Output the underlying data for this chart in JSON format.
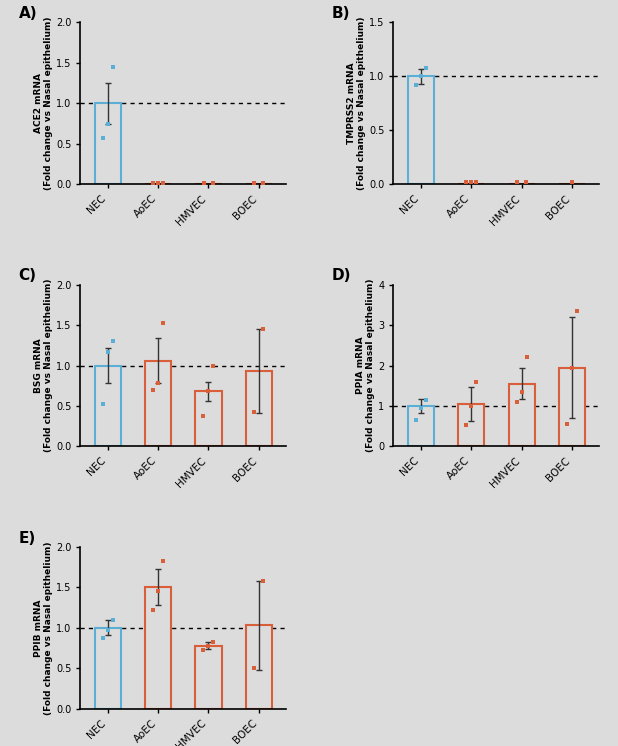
{
  "panels": {
    "A": {
      "ylabel": "ACE2 mRNA\n(Fold change vs Nasal epithelium)",
      "ylim": [
        0,
        2.0
      ],
      "yticks": [
        0.0,
        0.5,
        1.0,
        1.5,
        2.0
      ],
      "ytick_labels": [
        "0.0",
        "0.5",
        "1.0",
        "1.5",
        "2.0"
      ],
      "categories": [
        "NEC",
        "AoEC",
        "HMVEC",
        "BOEC"
      ],
      "bar_values": [
        1.0,
        0.0,
        0.0,
        0.0
      ],
      "bar_errors": [
        0.25,
        0.0,
        0.0,
        0.0
      ],
      "bar_colors": [
        "#5bafd6",
        "#d95f3b",
        "#d95f3b",
        "#d95f3b"
      ],
      "dot_data": {
        "NEC": [
          0.57,
          0.75,
          1.45
        ],
        "AoEC": [
          0.02,
          0.02,
          0.02
        ],
        "HMVEC": [
          0.02,
          0.02
        ],
        "BOEC": [
          0.02,
          0.02
        ]
      },
      "dot_colors": {
        "NEC": "#5bafd6",
        "AoEC": "#d95f3b",
        "HMVEC": "#d95f3b",
        "BOEC": "#d95f3b"
      }
    },
    "B": {
      "ylabel": "TMPRSS2 mRNA\n(Fold change vs Nasal epithelium)",
      "ylim": [
        0,
        1.5
      ],
      "yticks": [
        0.0,
        0.5,
        1.0,
        1.5
      ],
      "ytick_labels": [
        "0.0",
        "0.5",
        "1.0",
        "1.5"
      ],
      "categories": [
        "NEC",
        "AoEC",
        "HMVEC",
        "BOEC"
      ],
      "bar_values": [
        1.0,
        0.0,
        0.0,
        0.0
      ],
      "bar_errors": [
        0.07,
        0.0,
        0.0,
        0.0
      ],
      "bar_colors": [
        "#5bafd6",
        "#d95f3b",
        "#d95f3b",
        "#d95f3b"
      ],
      "dot_data": {
        "NEC": [
          0.92,
          1.0,
          1.08
        ],
        "AoEC": [
          0.02,
          0.02,
          0.02
        ],
        "HMVEC": [
          0.02,
          0.02
        ],
        "BOEC": [
          0.02
        ]
      },
      "dot_colors": {
        "NEC": "#5bafd6",
        "AoEC": "#d95f3b",
        "HMVEC": "#d95f3b",
        "BOEC": "#d95f3b"
      }
    },
    "C": {
      "ylabel": "BSG mRNA\n(Fold change vs Nasal epithelium)",
      "ylim": [
        0,
        2.0
      ],
      "yticks": [
        0.0,
        0.5,
        1.0,
        1.5,
        2.0
      ],
      "ytick_labels": [
        "0.0",
        "0.5",
        "1.0",
        "1.5",
        "2.0"
      ],
      "categories": [
        "NEC",
        "AoEC",
        "HMVEC",
        "BOEC"
      ],
      "bar_values": [
        1.0,
        1.06,
        0.68,
        0.93
      ],
      "bar_errors": [
        0.22,
        0.28,
        0.12,
        0.52
      ],
      "bar_colors": [
        "#5bafd6",
        "#d95f3b",
        "#d95f3b",
        "#d95f3b"
      ],
      "dot_data": {
        "NEC": [
          0.52,
          1.17,
          1.3
        ],
        "AoEC": [
          0.7,
          0.78,
          1.53
        ],
        "HMVEC": [
          0.38,
          0.68,
          1.0
        ],
        "BOEC": [
          0.43,
          1.45
        ]
      },
      "dot_colors": {
        "NEC": "#5bafd6",
        "AoEC": "#d95f3b",
        "HMVEC": "#d95f3b",
        "BOEC": "#d95f3b"
      }
    },
    "D": {
      "ylabel": "PPIA mRNA\n(Fold change vs Nasal epithelium)",
      "ylim": [
        0,
        4.0
      ],
      "yticks": [
        0,
        1,
        2,
        3,
        4
      ],
      "ytick_labels": [
        "0",
        "1",
        "2",
        "3",
        "4"
      ],
      "categories": [
        "NEC",
        "AoEC",
        "HMVEC",
        "BOEC"
      ],
      "bar_values": [
        1.0,
        1.05,
        1.55,
        1.95
      ],
      "bar_errors": [
        0.18,
        0.42,
        0.38,
        1.25
      ],
      "bar_colors": [
        "#5bafd6",
        "#d95f3b",
        "#d95f3b",
        "#d95f3b"
      ],
      "dot_data": {
        "NEC": [
          0.65,
          0.95,
          1.15
        ],
        "AoEC": [
          0.52,
          1.0,
          1.6
        ],
        "HMVEC": [
          1.1,
          1.35,
          2.2
        ],
        "BOEC": [
          0.55,
          1.95,
          3.35
        ]
      },
      "dot_colors": {
        "NEC": "#5bafd6",
        "AoEC": "#d95f3b",
        "HMVEC": "#d95f3b",
        "BOEC": "#d95f3b"
      }
    },
    "E": {
      "ylabel": "PPIB mRNA\n(Fold change vs Nasal epithelium)",
      "ylim": [
        0,
        2.0
      ],
      "yticks": [
        0.0,
        0.5,
        1.0,
        1.5,
        2.0
      ],
      "ytick_labels": [
        "0.0",
        "0.5",
        "1.0",
        "1.5",
        "2.0"
      ],
      "categories": [
        "NEC",
        "AoEC",
        "HMVEC",
        "BOEC"
      ],
      "bar_values": [
        1.0,
        1.5,
        0.78,
        1.03
      ],
      "bar_errors": [
        0.09,
        0.22,
        0.04,
        0.55
      ],
      "bar_colors": [
        "#5bafd6",
        "#d95f3b",
        "#d95f3b",
        "#d95f3b"
      ],
      "dot_data": {
        "NEC": [
          0.87,
          0.97,
          1.1
        ],
        "AoEC": [
          1.22,
          1.45,
          1.82
        ],
        "HMVEC": [
          0.72,
          0.78,
          0.82
        ],
        "BOEC": [
          0.5,
          1.58
        ]
      },
      "dot_colors": {
        "NEC": "#5bafd6",
        "AoEC": "#d95f3b",
        "HMVEC": "#d95f3b",
        "BOEC": "#d95f3b"
      }
    }
  },
  "dotted_line_y": 1.0,
  "background_color": "#f0f0f0",
  "fig_background": "#e8e8e8"
}
